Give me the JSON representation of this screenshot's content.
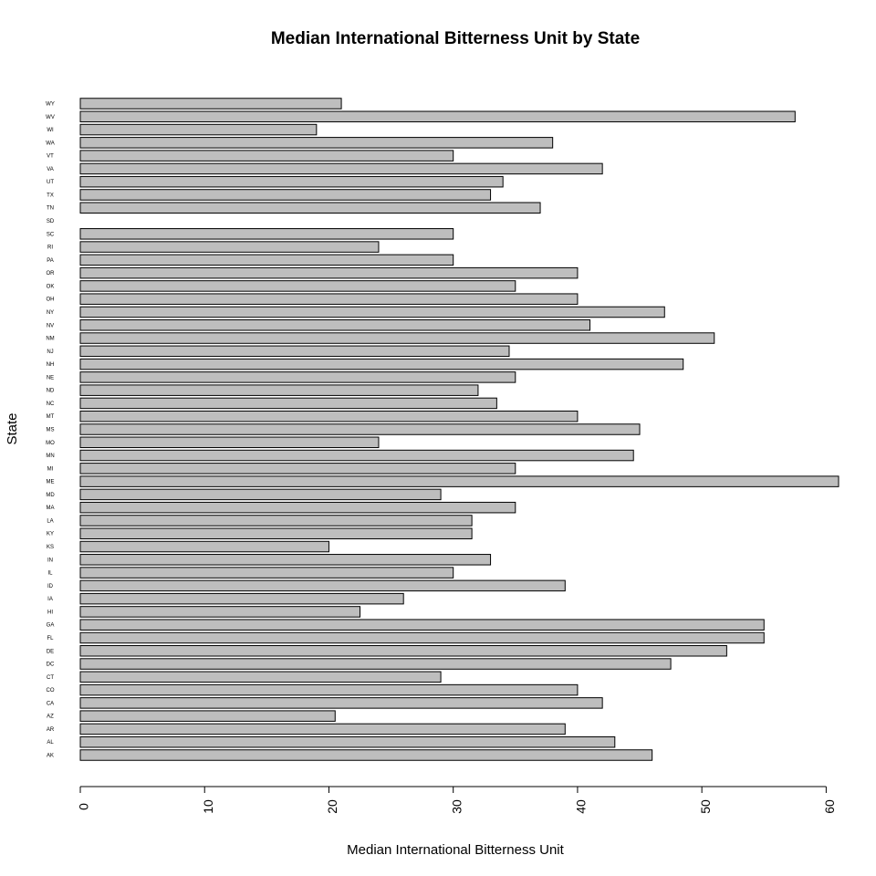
{
  "chart_data": {
    "type": "bar",
    "orientation": "horizontal",
    "title": "Median International Bitterness Unit by State",
    "xlabel": "Median International Bitterness Unit",
    "ylabel": "State",
    "xlim": [
      0,
      61
    ],
    "xticks": [
      0,
      10,
      20,
      30,
      40,
      50,
      60
    ],
    "xtick_labels": [
      "0",
      "10",
      "20",
      "30",
      "40",
      "50",
      "60"
    ],
    "grid": false,
    "bar_color": "#bebebe",
    "categories": [
      "AK",
      "AL",
      "AR",
      "AZ",
      "CA",
      "CO",
      "CT",
      "DC",
      "DE",
      "FL",
      "GA",
      "HI",
      "IA",
      "ID",
      "IL",
      "IN",
      "KS",
      "KY",
      "LA",
      "MA",
      "MD",
      "ME",
      "MI",
      "MN",
      "MO",
      "MS",
      "MT",
      "NC",
      "ND",
      "NE",
      "NH",
      "NJ",
      "NM",
      "NV",
      "NY",
      "OH",
      "OK",
      "OR",
      "PA",
      "RI",
      "SC",
      "SD",
      "TN",
      "TX",
      "UT",
      "VA",
      "VT",
      "WA",
      "WI",
      "WV",
      "WY"
    ],
    "values": [
      46,
      43,
      39,
      20.5,
      42,
      40,
      29,
      47.5,
      52,
      55,
      55,
      22.5,
      26,
      39,
      30,
      33,
      20,
      31.5,
      31.5,
      35,
      29,
      61,
      35,
      44.5,
      24,
      45,
      40,
      33.5,
      32,
      35,
      48.5,
      34.5,
      51,
      41,
      47,
      40,
      35,
      40,
      30,
      24,
      30,
      null,
      37,
      33,
      34,
      42,
      30,
      38,
      19,
      57.5,
      21
    ]
  }
}
